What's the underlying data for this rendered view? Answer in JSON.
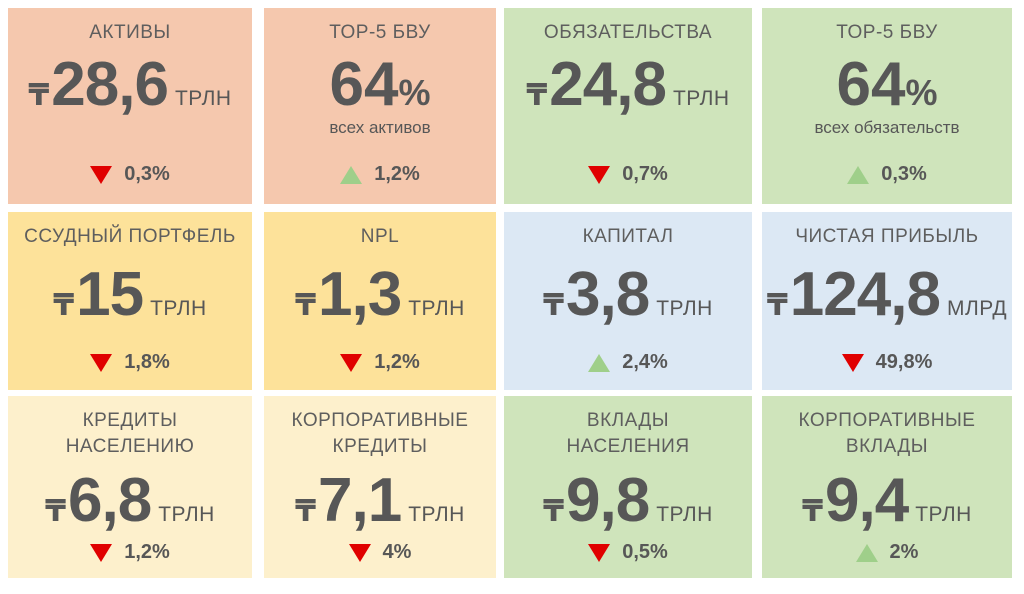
{
  "colors": {
    "salmon": "#f5c8ae",
    "green": "#cfe4bb",
    "yellow": "#fde29a",
    "blue": "#dce8f4",
    "lightyellow": "#fdf0cc",
    "down": "#e00000",
    "up": "#9fcf8a"
  },
  "tiles": [
    {
      "label": "АКТИВЫ",
      "currency": "₸",
      "value": "28,6",
      "unit": "ТРЛН",
      "change": "0,3%",
      "direction": "down",
      "color": "salmon"
    },
    {
      "label": "ТОР-5 БВУ",
      "value": "64",
      "percent": "%",
      "sub": "всех активов",
      "change": "1,2%",
      "direction": "up",
      "color": "salmon"
    },
    {
      "label": "ОБЯЗАТЕЛЬСТВА",
      "currency": "₸",
      "value": "24,8",
      "unit": "ТРЛН",
      "change": "0,7%",
      "direction": "down",
      "color": "green"
    },
    {
      "label": "ТОР-5 БВУ",
      "value": "64",
      "percent": "%",
      "sub": "всех обязательств",
      "change": "0,3%",
      "direction": "up",
      "color": "green"
    },
    {
      "label": "ССУДНЫЙ ПОРТФЕЛЬ",
      "currency": "₸",
      "value": "15",
      "unit": "ТРЛН",
      "change": "1,8%",
      "direction": "down",
      "color": "yellow"
    },
    {
      "label": "NPL",
      "currency": "₸",
      "value": "1,3",
      "unit": "ТРЛН",
      "change": "1,2%",
      "direction": "down",
      "color": "yellow"
    },
    {
      "label": "КАПИТАЛ",
      "currency": "₸",
      "value": "3,8",
      "unit": "ТРЛН",
      "change": "2,4%",
      "direction": "up",
      "color": "blue"
    },
    {
      "label": "ЧИСТАЯ ПРИБЫЛЬ",
      "currency": "₸",
      "value": "124,8",
      "unit": "МЛРД",
      "change": "49,8%",
      "direction": "down",
      "color": "blue"
    },
    {
      "label": "КРЕДИТЫ\nНАСЕЛЕНИЮ",
      "currency": "₸",
      "value": "6,8",
      "unit": "ТРЛН",
      "change": "1,2%",
      "direction": "down",
      "color": "lightyellow"
    },
    {
      "label": "КОРПОРАТИВНЫЕ\nКРЕДИТЫ",
      "currency": "₸",
      "value": "7,1",
      "unit": "ТРЛН",
      "change": "4%",
      "direction": "down",
      "color": "lightyellow"
    },
    {
      "label": "ВКЛАДЫ\nНАСЕЛЕНИЯ",
      "currency": "₸",
      "value": "9,8",
      "unit": "ТРЛН",
      "change": "0,5%",
      "direction": "down",
      "color": "green"
    },
    {
      "label": "КОРПОРАТИВНЫЕ\nВКЛАДЫ",
      "currency": "₸",
      "value": "9,4",
      "unit": "ТРЛН",
      "change": "2%",
      "direction": "up",
      "color": "green"
    }
  ]
}
